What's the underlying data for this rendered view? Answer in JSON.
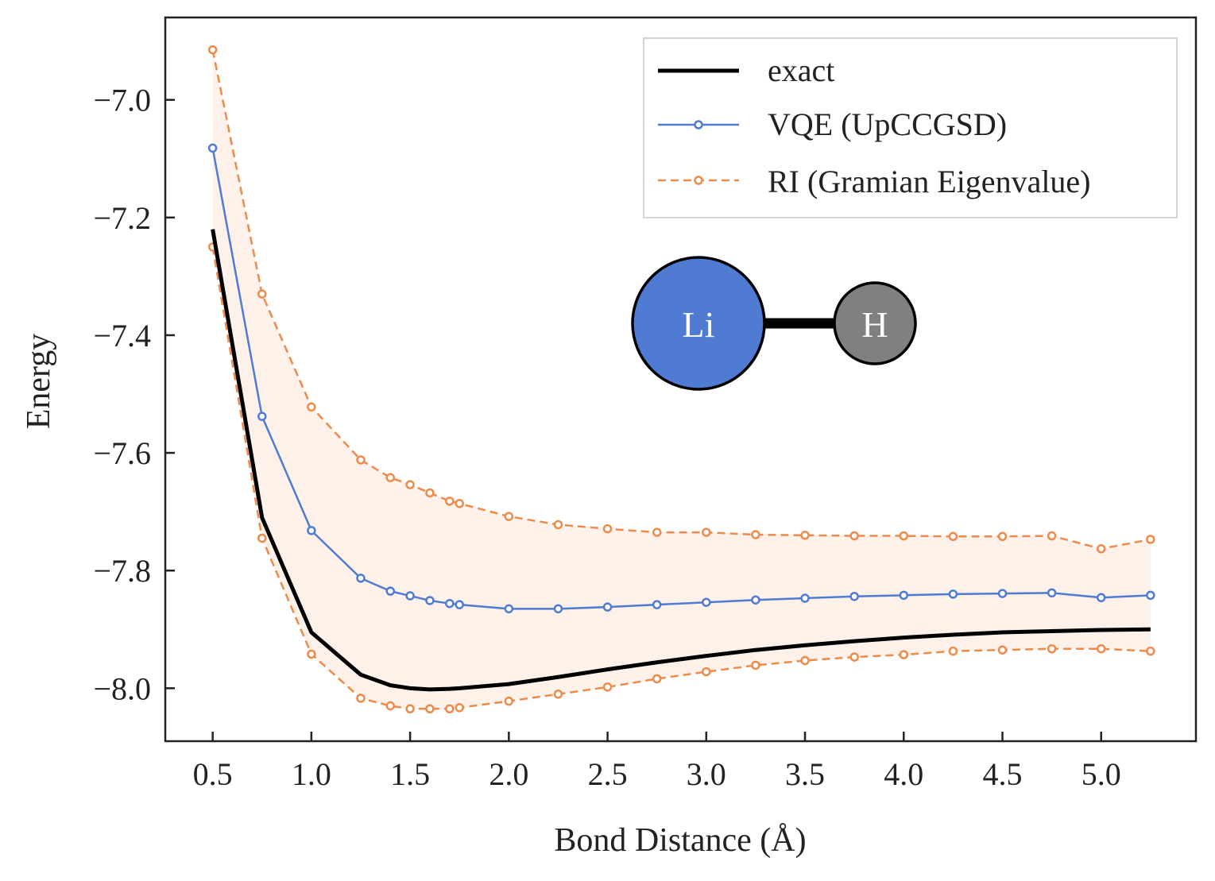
{
  "chart_data": {
    "type": "line",
    "xlabel": "Bond Distance (Å)",
    "ylabel": "Energy",
    "xlim": [
      0.26,
      5.48
    ],
    "ylim": [
      -8.09,
      -6.86
    ],
    "xticks": [
      "0.5",
      "1.0",
      "1.5",
      "2.0",
      "2.5",
      "3.0",
      "3.5",
      "4.0",
      "4.5",
      "5.0"
    ],
    "xtick_values": [
      0.5,
      1.0,
      1.5,
      2.0,
      2.5,
      3.0,
      3.5,
      4.0,
      4.5,
      5.0
    ],
    "yticks": [
      "−7.0",
      "−7.2",
      "−7.4",
      "−7.6",
      "−7.8",
      "−8.0"
    ],
    "ytick_values": [
      -7.0,
      -7.2,
      -7.4,
      -7.6,
      -7.8,
      -8.0
    ],
    "grid": false,
    "legend_position": "top-right",
    "x": [
      0.5,
      0.75,
      1.0,
      1.25,
      1.4,
      1.5,
      1.6,
      1.7,
      1.75,
      2.0,
      2.25,
      2.5,
      2.75,
      3.0,
      3.25,
      3.5,
      3.75,
      4.0,
      4.25,
      4.5,
      4.75,
      5.0,
      5.25
    ],
    "series": [
      {
        "name": "exact",
        "color": "#000000",
        "style": "solid",
        "markers": false,
        "values": [
          -7.22,
          -7.71,
          -7.905,
          -7.977,
          -7.995,
          -8.0,
          -8.002,
          -8.001,
          -8.0,
          -7.993,
          -7.981,
          -7.968,
          -7.956,
          -7.945,
          -7.935,
          -7.927,
          -7.92,
          -7.914,
          -7.909,
          -7.905,
          -7.903,
          -7.901,
          -7.9
        ]
      },
      {
        "name": "VQE (UpCCGSD)",
        "color": "#4f7bd3",
        "style": "solid",
        "markers": true,
        "values": [
          -7.082,
          -7.538,
          -7.732,
          -7.813,
          -7.835,
          -7.843,
          -7.851,
          -7.856,
          -7.858,
          -7.865,
          -7.865,
          -7.862,
          -7.858,
          -7.854,
          -7.85,
          -7.847,
          -7.844,
          -7.842,
          -7.84,
          -7.839,
          -7.838,
          -7.846,
          -7.842
        ]
      },
      {
        "name": "RI (Gramian Eigenvalue)",
        "color": "#ee8a4a",
        "style": "dashed",
        "markers": true,
        "upper": [
          -6.915,
          -7.33,
          -7.522,
          -7.612,
          -7.642,
          -7.654,
          -7.668,
          -7.682,
          -7.686,
          -7.708,
          -7.722,
          -7.729,
          -7.735,
          -7.735,
          -7.739,
          -7.74,
          -7.741,
          -7.741,
          -7.742,
          -7.742,
          -7.741,
          -7.763,
          -7.747
        ],
        "lower": [
          -7.25,
          -7.745,
          -7.942,
          -8.017,
          -8.03,
          -8.035,
          -8.035,
          -8.035,
          -8.033,
          -8.022,
          -8.01,
          -7.998,
          -7.984,
          -7.972,
          -7.961,
          -7.953,
          -7.947,
          -7.943,
          -7.937,
          -7.935,
          -7.933,
          -7.933,
          -7.937
        ]
      }
    ]
  },
  "inset": {
    "atom_left": {
      "label": "Li",
      "color": "#4f7bd3"
    },
    "atom_right": {
      "label": "H",
      "color": "#808080"
    }
  }
}
